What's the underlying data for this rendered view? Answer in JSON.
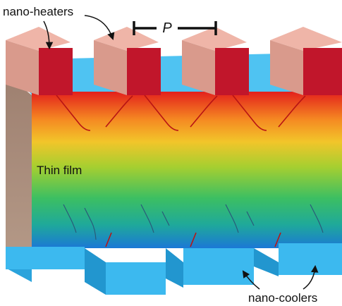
{
  "labels": {
    "heaters": "nano-heaters",
    "period": "P",
    "film": "Thin film",
    "coolers": "nano-coolers"
  }
}
